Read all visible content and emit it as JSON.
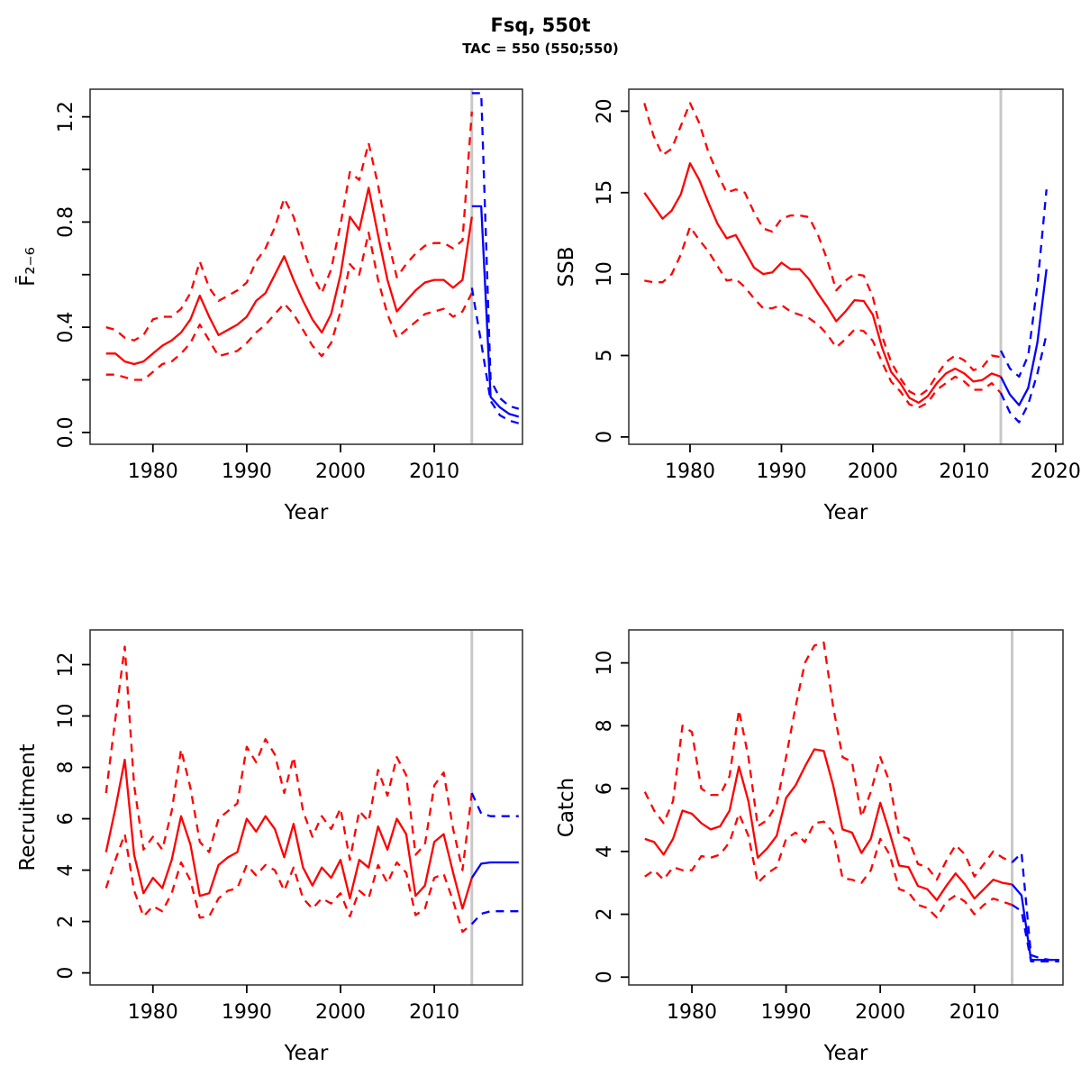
{
  "title": "Fsq, 550t",
  "subtitle": "TAC = 550 (550;550)",
  "colors": {
    "historical": "#ff0000",
    "projection": "#0000ff",
    "divider": "#c8c8c8",
    "box": "#2b2b2b",
    "text": "#000000"
  },
  "divider_year": 2014,
  "x_hist": [
    1975,
    1976,
    1977,
    1978,
    1979,
    1980,
    1981,
    1982,
    1983,
    1984,
    1985,
    1986,
    1987,
    1988,
    1989,
    1990,
    1991,
    1992,
    1993,
    1994,
    1995,
    1996,
    1997,
    1998,
    1999,
    2000,
    2001,
    2002,
    2003,
    2004,
    2005,
    2006,
    2007,
    2008,
    2009,
    2010,
    2011,
    2012,
    2013,
    2014
  ],
  "x_proj": [
    2014,
    2015,
    2016,
    2017,
    2018,
    2019
  ],
  "chart_data": [
    {
      "type": "line",
      "name": "fbar",
      "ylabel": "F̄₂₋₆",
      "xlabel": "Year",
      "xlim": [
        1973.3,
        2019.4
      ],
      "ylim": [
        -0.045,
        1.305
      ],
      "xticks": [
        1980,
        1990,
        2000,
        2010
      ],
      "yticks_all": [
        0,
        0.2,
        0.4,
        0.6,
        0.8,
        1.0,
        1.2
      ],
      "yticks_labeled": [
        [
          0,
          "0.0"
        ],
        [
          0.4,
          "0.4"
        ],
        [
          0.8,
          "0.8"
        ],
        [
          1.2,
          "1.2"
        ]
      ],
      "grid": false,
      "legend": "none",
      "hist_median": [
        0.3,
        0.3,
        0.27,
        0.26,
        0.27,
        0.3,
        0.33,
        0.35,
        0.38,
        0.43,
        0.52,
        0.44,
        0.37,
        0.39,
        0.41,
        0.44,
        0.5,
        0.53,
        0.6,
        0.67,
        0.58,
        0.5,
        0.43,
        0.38,
        0.45,
        0.6,
        0.82,
        0.77,
        0.93,
        0.75,
        0.58,
        0.46,
        0.5,
        0.54,
        0.57,
        0.58,
        0.58,
        0.55,
        0.58,
        0.82
      ],
      "hist_upper": [
        0.4,
        0.39,
        0.36,
        0.35,
        0.37,
        0.43,
        0.44,
        0.44,
        0.47,
        0.53,
        0.65,
        0.55,
        0.5,
        0.52,
        0.54,
        0.57,
        0.65,
        0.7,
        0.78,
        0.89,
        0.82,
        0.7,
        0.6,
        0.53,
        0.62,
        0.79,
        0.99,
        0.96,
        1.1,
        0.94,
        0.74,
        0.59,
        0.64,
        0.68,
        0.71,
        0.72,
        0.72,
        0.7,
        0.73,
        1.22
      ],
      "hist_lower": [
        0.22,
        0.22,
        0.21,
        0.2,
        0.2,
        0.23,
        0.26,
        0.27,
        0.3,
        0.34,
        0.41,
        0.35,
        0.29,
        0.3,
        0.31,
        0.34,
        0.38,
        0.41,
        0.45,
        0.49,
        0.45,
        0.39,
        0.33,
        0.29,
        0.34,
        0.46,
        0.64,
        0.6,
        0.76,
        0.58,
        0.45,
        0.36,
        0.39,
        0.42,
        0.45,
        0.46,
        0.47,
        0.44,
        0.46,
        0.53
      ],
      "proj_median": [
        0.86,
        0.86,
        0.135,
        0.095,
        0.07,
        0.06
      ],
      "proj_upper": [
        1.29,
        1.29,
        0.2,
        0.13,
        0.1,
        0.09
      ],
      "proj_lower": [
        0.55,
        0.34,
        0.12,
        0.065,
        0.045,
        0.035
      ]
    },
    {
      "type": "line",
      "name": "ssb",
      "ylabel": "SSB",
      "xlabel": "Year",
      "xlim": [
        1973.3,
        2020.8
      ],
      "ylim": [
        -0.45,
        21.35
      ],
      "xticks": [
        1980,
        1990,
        2000,
        2010,
        2020
      ],
      "yticks_all": [
        0,
        5,
        10,
        15,
        20
      ],
      "yticks_labeled": [
        [
          0,
          "0"
        ],
        [
          5,
          "5"
        ],
        [
          10,
          "10"
        ],
        [
          15,
          "15"
        ],
        [
          20,
          "20"
        ]
      ],
      "grid": false,
      "legend": "none",
      "hist_median": [
        15.0,
        14.2,
        13.4,
        13.9,
        14.9,
        16.8,
        15.8,
        14.4,
        13.1,
        12.2,
        12.4,
        11.4,
        10.4,
        10.0,
        10.1,
        10.7,
        10.3,
        10.3,
        9.7,
        8.8,
        8.0,
        7.1,
        7.7,
        8.4,
        8.35,
        7.5,
        5.5,
        4.0,
        3.3,
        2.4,
        2.1,
        2.5,
        3.3,
        3.9,
        4.2,
        3.9,
        3.4,
        3.5,
        3.9,
        3.7
      ],
      "hist_upper": [
        20.5,
        18.5,
        17.3,
        17.7,
        19.1,
        20.5,
        19.3,
        17.5,
        16.2,
        15.0,
        15.2,
        15.0,
        13.8,
        12.8,
        12.6,
        13.4,
        13.6,
        13.6,
        13.5,
        12.4,
        10.9,
        9.0,
        9.6,
        10.0,
        9.9,
        8.6,
        6.2,
        4.6,
        3.6,
        2.8,
        2.5,
        2.9,
        3.8,
        4.6,
        5.0,
        4.7,
        4.1,
        4.3,
        5.0,
        4.9
      ],
      "hist_lower": [
        9.6,
        9.5,
        9.5,
        10.0,
        11.2,
        12.9,
        12.1,
        11.4,
        10.5,
        9.6,
        9.7,
        9.2,
        8.5,
        7.9,
        7.9,
        8.1,
        7.7,
        7.5,
        7.3,
        6.9,
        6.3,
        5.5,
        6.0,
        6.6,
        6.5,
        5.9,
        4.6,
        3.4,
        2.8,
        2.0,
        1.8,
        2.1,
        2.9,
        3.3,
        3.7,
        3.4,
        2.9,
        2.9,
        3.3,
        2.7
      ],
      "proj_median": [
        3.7,
        2.6,
        1.95,
        3.0,
        5.8,
        10.3
      ],
      "proj_upper": [
        5.3,
        4.2,
        3.7,
        5.0,
        9.3,
        15.2
      ],
      "proj_lower": [
        2.7,
        1.5,
        0.9,
        2.0,
        3.9,
        6.3
      ]
    },
    {
      "type": "line",
      "name": "recruitment",
      "ylabel": "Recruitment",
      "xlabel": "Year",
      "xlim": [
        1973.3,
        2019.4
      ],
      "ylim": [
        -0.47,
        13.35
      ],
      "xticks": [
        1980,
        1990,
        2000,
        2010
      ],
      "yticks_all": [
        0,
        2,
        4,
        6,
        8,
        10,
        12
      ],
      "yticks_labeled": [
        [
          0,
          "0"
        ],
        [
          2,
          "2"
        ],
        [
          4,
          "4"
        ],
        [
          6,
          "6"
        ],
        [
          8,
          "8"
        ],
        [
          10,
          "10"
        ],
        [
          12,
          "12"
        ]
      ],
      "grid": false,
      "legend": "none",
      "hist_median": [
        4.7,
        6.4,
        8.3,
        4.6,
        3.1,
        3.7,
        3.3,
        4.4,
        6.1,
        5.0,
        3.0,
        3.1,
        4.2,
        4.5,
        4.7,
        6.0,
        5.5,
        6.1,
        5.6,
        4.5,
        5.8,
        4.1,
        3.4,
        4.1,
        3.7,
        4.4,
        2.9,
        4.4,
        4.1,
        5.7,
        4.8,
        6.0,
        5.4,
        3.0,
        3.4,
        5.1,
        5.4,
        3.9,
        2.5,
        3.7
      ],
      "hist_upper": [
        7.0,
        9.9,
        12.7,
        7.3,
        4.8,
        5.3,
        4.8,
        6.3,
        8.7,
        7.2,
        5.1,
        4.7,
        6.0,
        6.3,
        6.6,
        8.8,
        8.2,
        9.1,
        8.5,
        7.0,
        8.4,
        6.3,
        5.3,
        6.1,
        5.6,
        6.4,
        4.4,
        6.3,
        5.9,
        7.9,
        6.9,
        8.4,
        7.7,
        4.6,
        5.0,
        7.3,
        7.8,
        5.6,
        4.0,
        7.0
      ],
      "hist_lower": [
        3.3,
        4.4,
        5.4,
        3.2,
        2.2,
        2.6,
        2.4,
        3.1,
        4.3,
        3.6,
        2.15,
        2.2,
        2.9,
        3.2,
        3.3,
        4.2,
        3.8,
        4.2,
        4.0,
        3.2,
        4.1,
        2.9,
        2.5,
        2.9,
        2.7,
        3.1,
        2.2,
        3.2,
        2.9,
        4.2,
        3.5,
        4.3,
        3.9,
        2.25,
        2.5,
        3.7,
        3.85,
        2.8,
        1.6,
        1.9
      ],
      "proj_median": [
        3.7,
        4.25,
        4.3,
        4.3,
        4.3,
        4.3
      ],
      "proj_upper": [
        7.0,
        6.2,
        6.1,
        6.1,
        6.1,
        6.1
      ],
      "proj_lower": [
        1.9,
        2.3,
        2.4,
        2.4,
        2.4,
        2.4
      ]
    },
    {
      "type": "line",
      "name": "catch",
      "ylabel": "Catch",
      "xlabel": "Year",
      "xlim": [
        1973.3,
        2019.4
      ],
      "ylim": [
        -0.25,
        11.05
      ],
      "xticks": [
        1980,
        1990,
        2000,
        2010
      ],
      "yticks_all": [
        0,
        2,
        4,
        6,
        8,
        10
      ],
      "yticks_labeled": [
        [
          0,
          "0"
        ],
        [
          2,
          "2"
        ],
        [
          4,
          "4"
        ],
        [
          6,
          "6"
        ],
        [
          8,
          "8"
        ],
        [
          10,
          "10"
        ]
      ],
      "grid": false,
      "legend": "none",
      "hist_median": [
        4.4,
        4.3,
        3.9,
        4.4,
        5.3,
        5.2,
        4.9,
        4.7,
        4.8,
        5.3,
        6.7,
        5.6,
        3.8,
        4.1,
        4.5,
        5.7,
        6.1,
        6.7,
        7.25,
        7.2,
        6.1,
        4.7,
        4.6,
        3.95,
        4.4,
        5.55,
        4.6,
        3.55,
        3.5,
        2.9,
        2.8,
        2.45,
        2.9,
        3.3,
        2.95,
        2.5,
        2.8,
        3.1,
        3.0,
        2.95
      ],
      "hist_upper": [
        5.9,
        5.3,
        4.9,
        5.6,
        8.0,
        7.8,
        6.0,
        5.8,
        5.8,
        6.4,
        8.5,
        7.0,
        4.8,
        5.0,
        5.5,
        7.0,
        8.6,
        10.0,
        10.55,
        10.65,
        8.6,
        7.0,
        6.85,
        5.1,
        5.9,
        7.0,
        6.2,
        4.5,
        4.4,
        3.6,
        3.5,
        3.1,
        3.7,
        4.2,
        3.9,
        3.2,
        3.6,
        4.0,
        3.8,
        3.65
      ],
      "hist_lower": [
        3.2,
        3.4,
        3.1,
        3.5,
        3.4,
        3.4,
        3.85,
        3.8,
        3.9,
        4.3,
        5.2,
        4.5,
        3.0,
        3.3,
        3.5,
        4.4,
        4.6,
        4.3,
        4.9,
        4.95,
        4.6,
        3.15,
        3.1,
        3.0,
        3.4,
        4.4,
        3.9,
        2.8,
        2.7,
        2.3,
        2.2,
        1.9,
        2.4,
        2.6,
        2.4,
        2.0,
        2.3,
        2.5,
        2.4,
        2.3
      ],
      "proj_median": [
        2.95,
        2.6,
        0.55,
        0.55,
        0.55,
        0.55
      ],
      "proj_upper": [
        3.65,
        3.95,
        0.7,
        0.6,
        0.55,
        0.55
      ],
      "proj_lower": [
        2.3,
        2.1,
        0.5,
        0.5,
        0.5,
        0.5
      ]
    }
  ]
}
